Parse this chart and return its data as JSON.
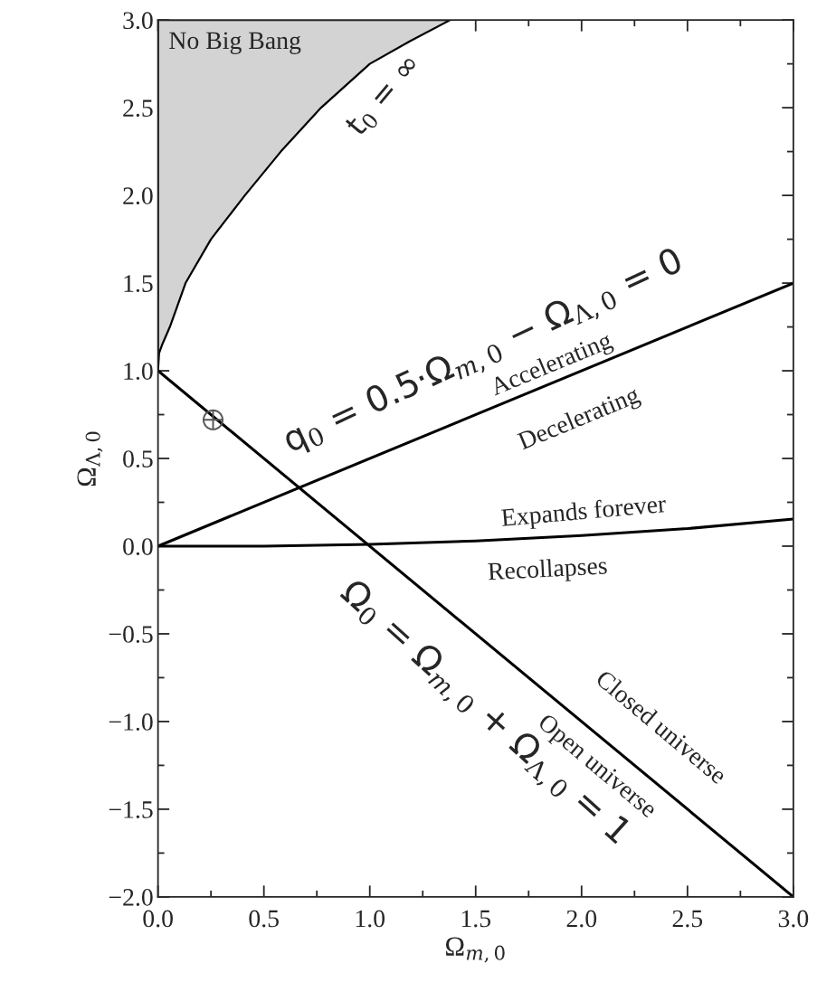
{
  "chart_data": {
    "type": "line",
    "xlabel": "Ω$_{m,0}$",
    "ylabel": "Ω$_{Λ,0}$",
    "xlim": [
      0,
      3
    ],
    "ylim": [
      -2,
      3
    ],
    "xticks": [
      {
        "value": 0,
        "label": "0.0"
      },
      {
        "value": 0.5,
        "label": "0.5"
      },
      {
        "value": 1,
        "label": "1.0"
      },
      {
        "value": 1.5,
        "label": "1.5"
      },
      {
        "value": 2,
        "label": "2.0"
      },
      {
        "value": 2.5,
        "label": "2.5"
      },
      {
        "value": 3,
        "label": "3.0"
      }
    ],
    "yticks": [
      {
        "value": -2,
        "label": "−2.0"
      },
      {
        "value": -1.5,
        "label": "−1.5"
      },
      {
        "value": -1,
        "label": "−1.0"
      },
      {
        "value": -0.5,
        "label": "−0.5"
      },
      {
        "value": 0,
        "label": "0.0"
      },
      {
        "value": 0.5,
        "label": "0.5"
      },
      {
        "value": 1,
        "label": "1.0"
      },
      {
        "value": 1.5,
        "label": "1.5"
      },
      {
        "value": 2,
        "label": "2.0"
      },
      {
        "value": 2.5,
        "label": "2.5"
      },
      {
        "value": 3,
        "label": "3.0"
      }
    ],
    "grid": false,
    "legend": false,
    "series": [
      {
        "type": "area",
        "color": "#d3d3d3",
        "x": [
          0,
          0,
          0.005,
          0.02,
          0.056,
          0.13,
          0.25,
          0.41,
          0.58,
          0.77,
          1.0,
          1.19,
          1.38
        ],
        "values": [
          3.0,
          1.0,
          1.1,
          1.15,
          1.25,
          1.5,
          1.75,
          2.0,
          2.25,
          2.5,
          2.75,
          2.88,
          3.0
        ]
      },
      {
        "color": "#000000",
        "x": [
          0,
          3
        ],
        "values": [
          0,
          1.5
        ]
      },
      {
        "color": "#000000",
        "x": [
          0,
          3
        ],
        "values": [
          1,
          -2
        ]
      },
      {
        "color": "#000000",
        "x": [
          0,
          0.5,
          1.0,
          1.5,
          2.0,
          2.5,
          3.0
        ],
        "values": [
          0,
          0.0,
          0.01,
          0.03,
          0.06,
          0.1,
          0.155
        ]
      },
      {
        "type": "scatter",
        "color": "#555555",
        "marker": "cross",
        "x": [
          0.26
        ],
        "values": [
          0.72
        ]
      }
    ],
    "annotations": [
      "No Big Bang",
      "t$_{0}$ = ∞",
      "q$_{0}$ = 0.5·Ω$_{m,0}$ − Ω$_{Λ,0}$ = 0",
      "Accelerating",
      "Decelerating",
      "Expands forever",
      "Recollapses",
      "Ω$_{0}$ = Ω$_{m,0}$ + Ω$_{Λ,0}$ = 1",
      "Closed universe",
      "Open universe"
    ]
  }
}
